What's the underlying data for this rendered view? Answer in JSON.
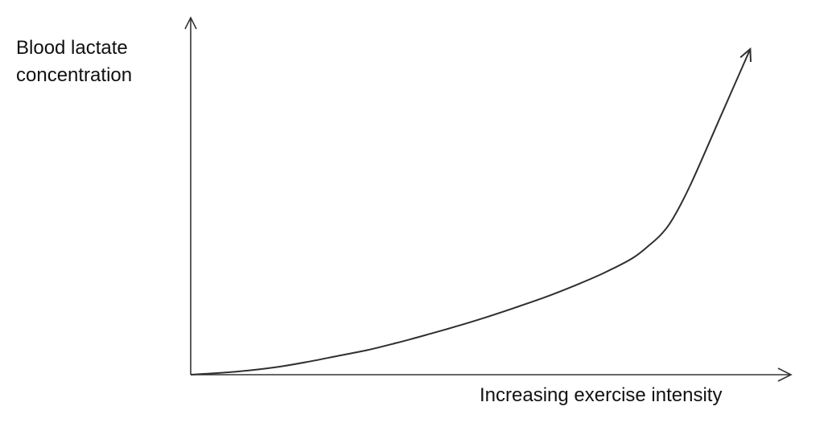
{
  "chart_data": {
    "type": "line",
    "title": "",
    "xlabel": "Increasing exercise intensity",
    "ylabel_lines": [
      "Blood lactate",
      "concentration"
    ],
    "xlim": [
      0,
      1
    ],
    "ylim": [
      0,
      1
    ],
    "grid": false,
    "series": [
      {
        "x": [
          0,
          0.05,
          0.1,
          0.15,
          0.2,
          0.25,
          0.3,
          0.35,
          0.4,
          0.45,
          0.5,
          0.55,
          0.6,
          0.65,
          0.7,
          0.75,
          0.78,
          0.8,
          0.82,
          0.85,
          0.9,
          0.95
        ],
        "y": [
          0,
          0.005,
          0.012,
          0.022,
          0.036,
          0.052,
          0.068,
          0.088,
          0.11,
          0.133,
          0.158,
          0.185,
          0.213,
          0.245,
          0.28,
          0.322,
          0.36,
          0.39,
          0.435,
          0.53,
          0.715,
          0.9
        ]
      }
    ],
    "colors": {
      "axis": "#333333",
      "line": "#2f2f2f",
      "text": "#111111"
    }
  }
}
